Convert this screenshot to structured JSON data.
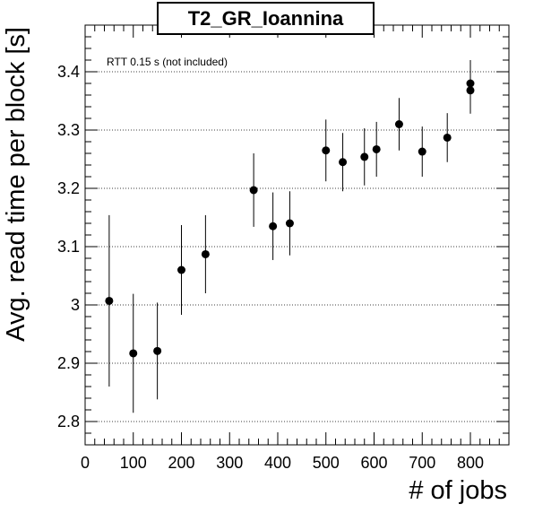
{
  "chart_data": {
    "type": "scatter",
    "title": "T2_GR_Ioannina",
    "xlabel": "# of jobs",
    "ylabel": "Avg. read time per block [s]",
    "annotation": "RTT 0.15 s (not included)",
    "xlim": [
      0,
      880
    ],
    "ylim": [
      2.76,
      3.48
    ],
    "x_ticks": [
      0,
      100,
      200,
      300,
      400,
      500,
      600,
      700,
      800
    ],
    "y_ticks": [
      2.8,
      2.9,
      3.0,
      3.1,
      3.2,
      3.3,
      3.4
    ],
    "y_tick_labels": [
      "2.8",
      "2.9",
      "3",
      "3.1",
      "3.2",
      "3.3",
      "3.4"
    ],
    "grid": "horizontal dotted",
    "marker_color": "#000000",
    "points": [
      {
        "x": 50,
        "y": 3.007,
        "err": 0.147
      },
      {
        "x": 100,
        "y": 2.917,
        "err": 0.102
      },
      {
        "x": 150,
        "y": 2.921,
        "err": 0.083
      },
      {
        "x": 200,
        "y": 3.06,
        "err": 0.077
      },
      {
        "x": 250,
        "y": 3.087,
        "err": 0.067
      },
      {
        "x": 350,
        "y": 3.197,
        "err": 0.063
      },
      {
        "x": 390,
        "y": 3.135,
        "err": 0.058
      },
      {
        "x": 425,
        "y": 3.14,
        "err": 0.055
      },
      {
        "x": 500,
        "y": 3.265,
        "err": 0.053
      },
      {
        "x": 535,
        "y": 3.245,
        "err": 0.05
      },
      {
        "x": 580,
        "y": 3.254,
        "err": 0.049
      },
      {
        "x": 605,
        "y": 3.267,
        "err": 0.047
      },
      {
        "x": 652,
        "y": 3.31,
        "err": 0.045
      },
      {
        "x": 700,
        "y": 3.263,
        "err": 0.043
      },
      {
        "x": 752,
        "y": 3.287,
        "err": 0.042
      },
      {
        "x": 800,
        "y": 3.368,
        "err": 0.04
      },
      {
        "x": 800,
        "y": 3.38,
        "err": 0.04
      }
    ]
  }
}
